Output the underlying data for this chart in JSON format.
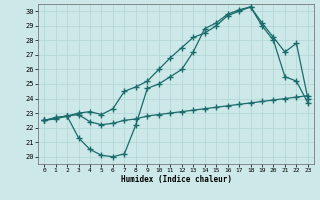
{
  "xlabel": "Humidex (Indice chaleur)",
  "xlim": [
    -0.5,
    23.5
  ],
  "ylim": [
    19.5,
    30.5
  ],
  "xticks": [
    0,
    1,
    2,
    3,
    4,
    5,
    6,
    7,
    8,
    9,
    10,
    11,
    12,
    13,
    14,
    15,
    16,
    17,
    18,
    19,
    20,
    21,
    22,
    23
  ],
  "yticks": [
    20,
    21,
    22,
    23,
    24,
    25,
    26,
    27,
    28,
    29,
    30
  ],
  "bg_color": "#cce8e8",
  "grid_color": "#b0d4d4",
  "line_color": "#1a6b6b",
  "line1_x": [
    0,
    1,
    2,
    3,
    4,
    5,
    6,
    7,
    8,
    9,
    10,
    11,
    12,
    13,
    14,
    15,
    16,
    17,
    18,
    19,
    20,
    21,
    22,
    23
  ],
  "line1_y": [
    22.5,
    22.7,
    22.8,
    22.9,
    22.4,
    22.2,
    22.3,
    22.5,
    22.6,
    22.8,
    22.9,
    23.0,
    23.1,
    23.2,
    23.3,
    23.4,
    23.5,
    23.6,
    23.7,
    23.8,
    23.9,
    24.0,
    24.1,
    24.2
  ],
  "line2_x": [
    0,
    2,
    3,
    4,
    5,
    6,
    7,
    8,
    9,
    10,
    11,
    12,
    13,
    14,
    15,
    16,
    17,
    18,
    19,
    20,
    21,
    22,
    23
  ],
  "line2_y": [
    22.5,
    22.8,
    21.3,
    20.5,
    20.1,
    20.0,
    20.2,
    22.2,
    24.7,
    25.0,
    25.5,
    26.0,
    27.2,
    28.8,
    29.2,
    29.8,
    30.1,
    30.3,
    29.0,
    28.0,
    25.5,
    25.2,
    23.7
  ],
  "line3_x": [
    0,
    1,
    2,
    3,
    4,
    5,
    6,
    7,
    8,
    9,
    10,
    11,
    12,
    13,
    14,
    15,
    16,
    17,
    18,
    19,
    20,
    21,
    22,
    23
  ],
  "line3_y": [
    22.5,
    22.6,
    22.8,
    23.0,
    23.1,
    22.9,
    23.3,
    24.5,
    24.8,
    25.2,
    26.0,
    26.8,
    27.5,
    28.2,
    28.5,
    29.0,
    29.7,
    30.0,
    30.3,
    29.2,
    28.2,
    27.2,
    27.8,
    24.0
  ]
}
